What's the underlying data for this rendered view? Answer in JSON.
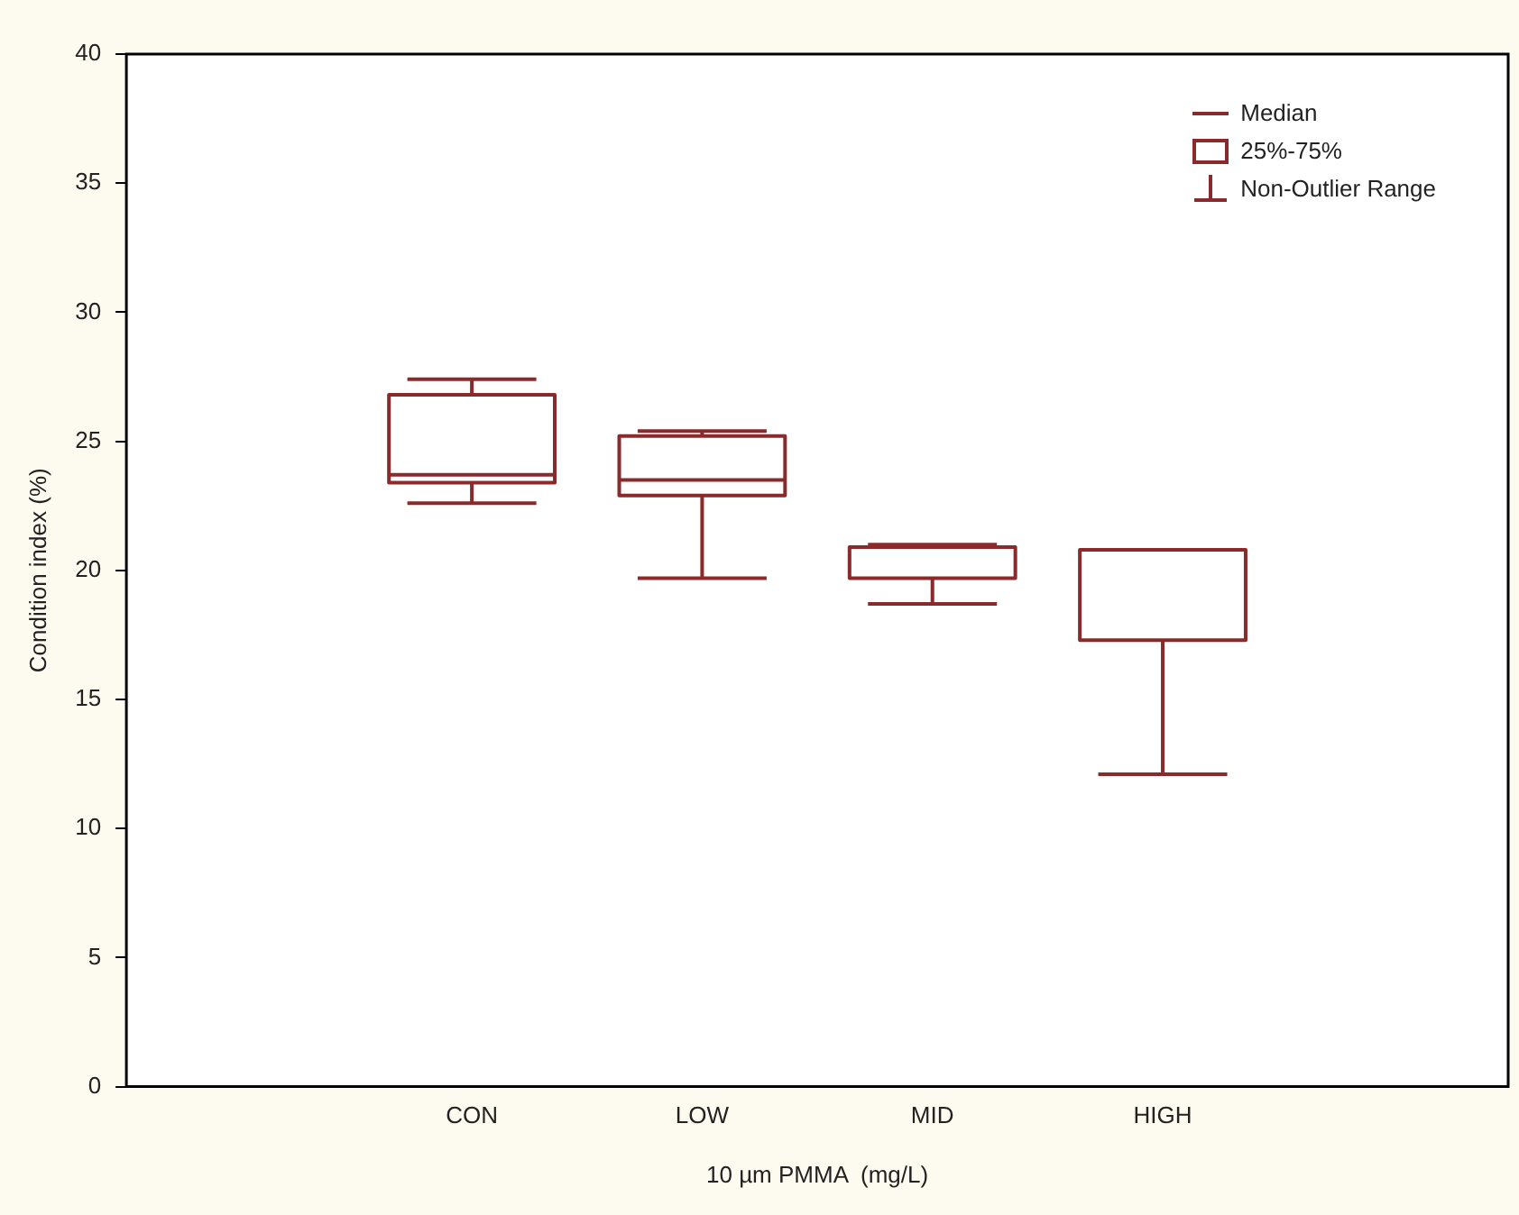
{
  "chart_data": {
    "type": "box",
    "xlabel": "10 µm PMMA  (mg/L)",
    "ylabel": "Condition index (%)",
    "color": "#8b2a2a",
    "categories": [
      null,
      "CON",
      "LOW",
      "MID",
      "HIGH",
      null
    ],
    "boxes": [
      null,
      {
        "low": 22.6,
        "q1": 23.4,
        "median": 23.7,
        "q3": 26.8,
        "high": 27.4
      },
      {
        "low": 19.7,
        "q1": 22.9,
        "median": 23.5,
        "q3": 25.2,
        "high": 25.4
      },
      {
        "low": 18.7,
        "q1": 19.7,
        "median": 20.9,
        "q3": 20.9,
        "high": 21.0
      },
      {
        "low": 12.1,
        "q1": 17.3,
        "median": 20.8,
        "q3": 20.8,
        "high": 20.8
      },
      null
    ],
    "ylim": [
      0,
      40
    ],
    "yticks": [
      0,
      5,
      10,
      15,
      20,
      25,
      30,
      35,
      40
    ],
    "grid": false,
    "annotations": [
      "Median",
      "25%-75%",
      "Non-Outlier Range"
    ]
  }
}
